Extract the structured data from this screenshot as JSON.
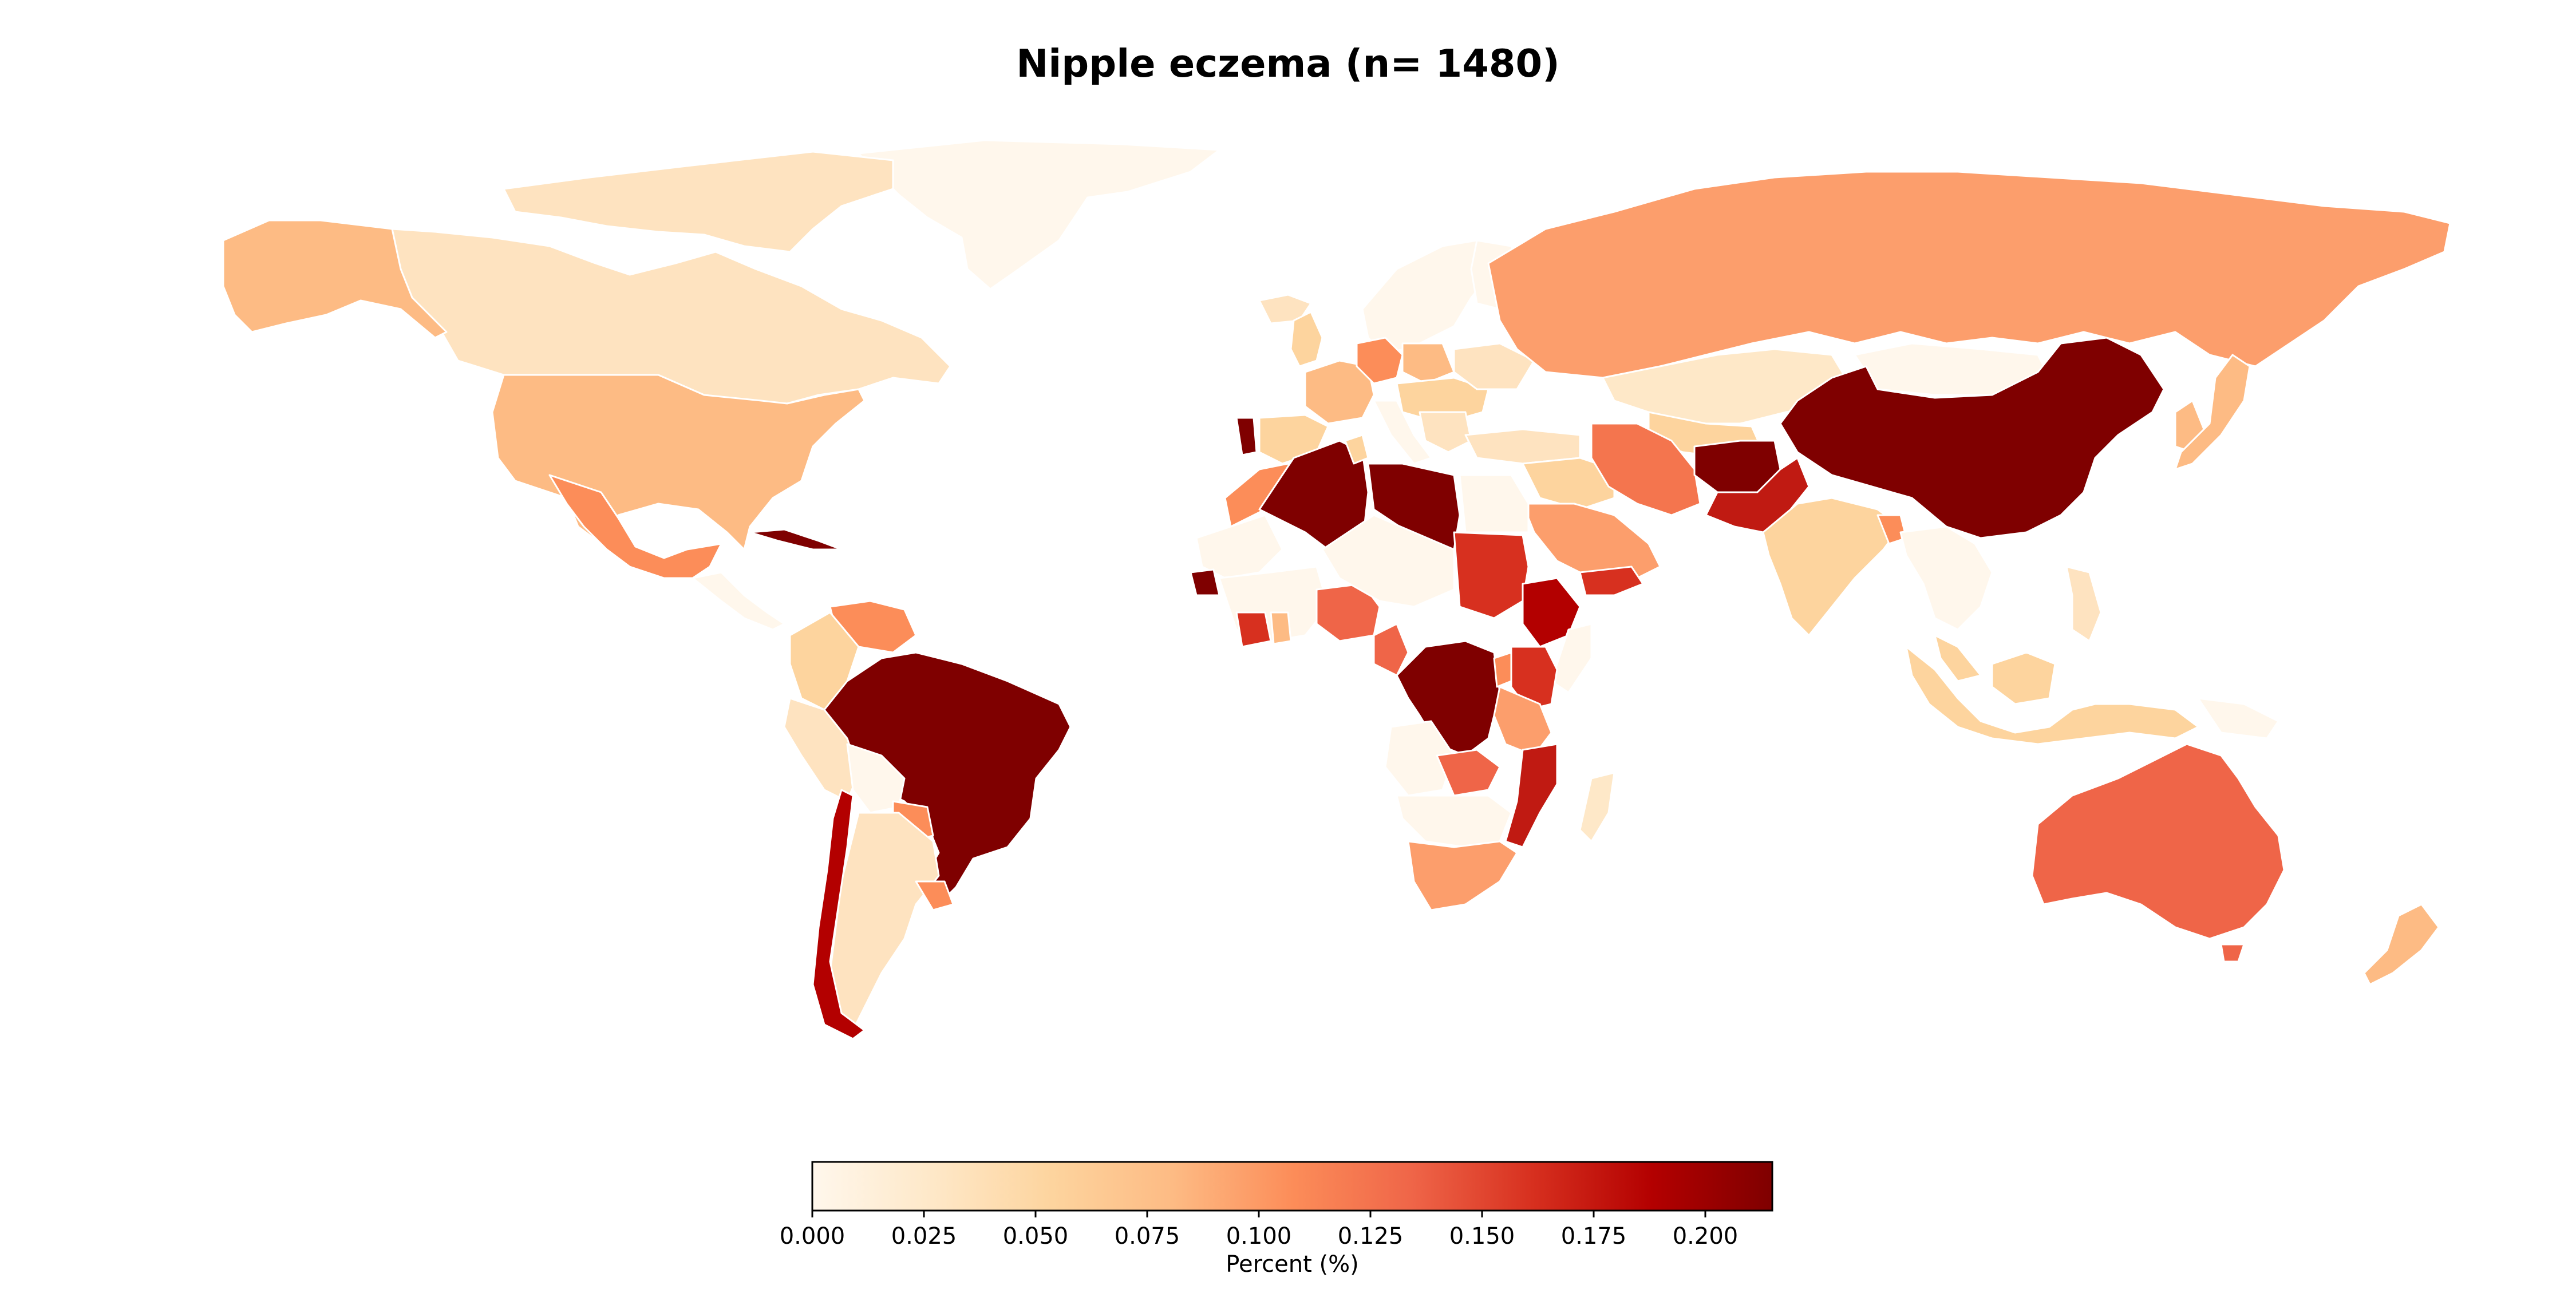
{
  "title": "Nipple eczema (n= 1480)",
  "colorbar": {
    "label": "Percent (%)",
    "ticks": [
      "0.000",
      "0.025",
      "0.050",
      "0.075",
      "0.100",
      "0.125",
      "0.150",
      "0.175",
      "0.200"
    ],
    "tick_values": [
      0,
      0.025,
      0.05,
      0.075,
      0.1,
      0.125,
      0.15,
      0.175,
      0.2
    ],
    "range": [
      0,
      0.215
    ],
    "colormap": "OrRd",
    "stops": [
      "#fff7ec",
      "#fee8c8",
      "#fdd49e",
      "#fdbb84",
      "#fc8d59",
      "#ef6548",
      "#d7301f",
      "#b30000",
      "#7f0000"
    ]
  },
  "colors": {
    "ocean": "#ffffff",
    "border": "#ffffff",
    "text": "#000000"
  }
}
